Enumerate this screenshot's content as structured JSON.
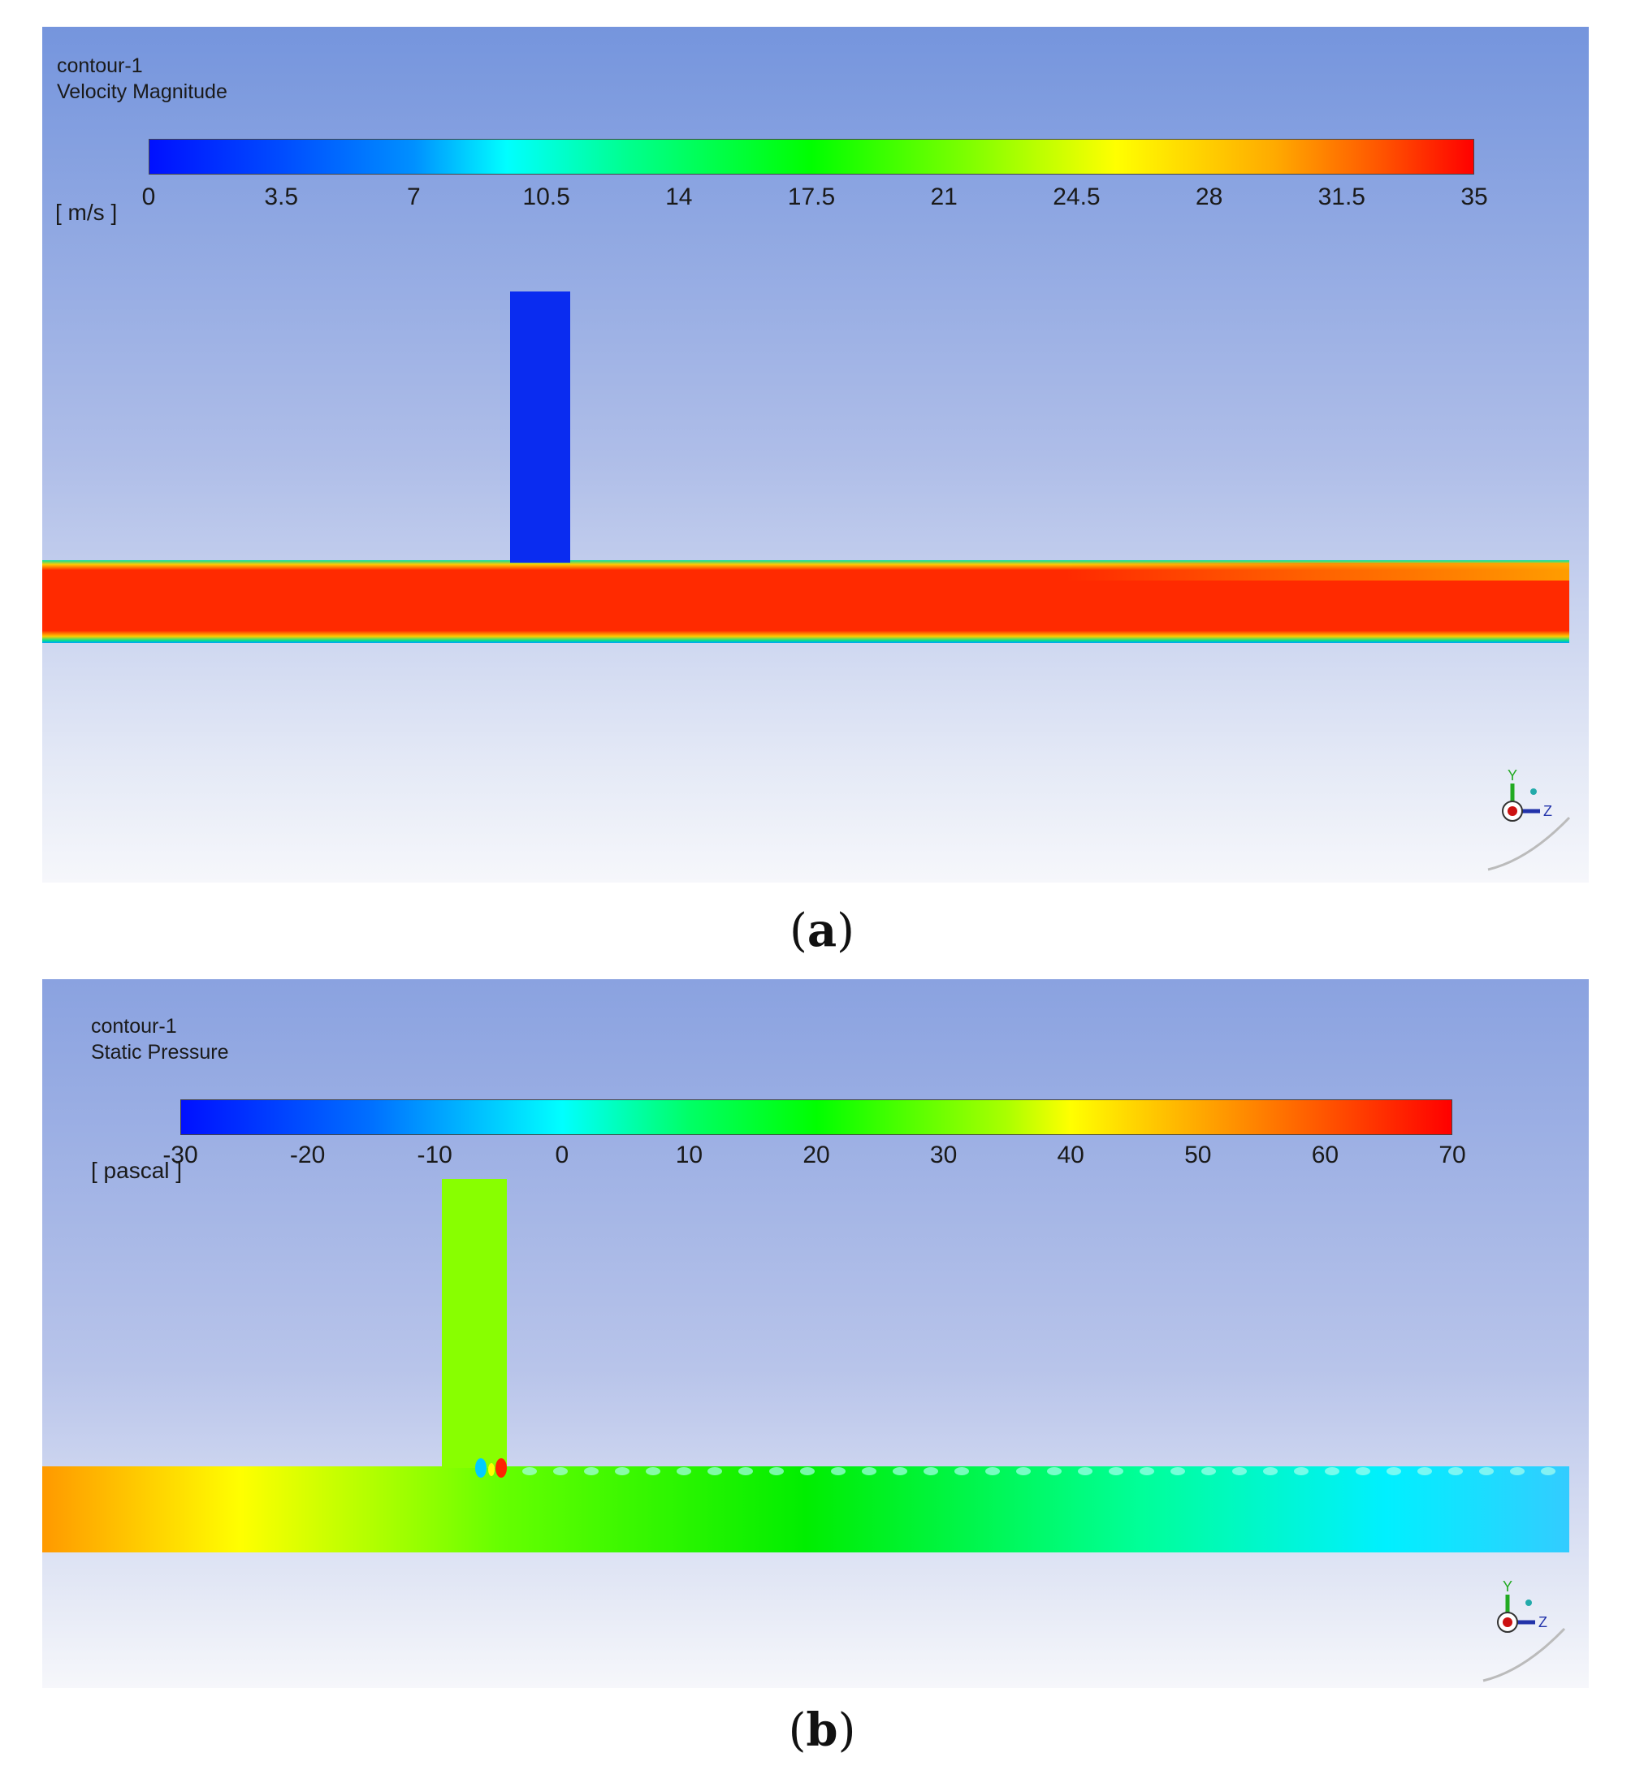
{
  "panels": [
    {
      "id": "a",
      "name": "contour-1",
      "quantity": "Velocity Magnitude",
      "unit": "[ m/s ]",
      "ticks": [
        "0",
        "3.5",
        "7",
        "10.5",
        "14",
        "17.5",
        "21",
        "24.5",
        "28",
        "31.5",
        "35"
      ],
      "caption_letter": "a"
    },
    {
      "id": "b",
      "name": "contour-1",
      "quantity": "Static Pressure",
      "unit": "[ pascal ]",
      "ticks": [
        "-30",
        "-20",
        "-10",
        "0",
        "10",
        "20",
        "30",
        "40",
        "50",
        "60",
        "70"
      ],
      "caption_letter": "b"
    }
  ],
  "colors": {
    "velocity_pipe": "#ff2a00",
    "velocity_branch": "#0a2cf0",
    "pressure_branch": "#88ff00"
  },
  "axis_triad": {
    "y_label": "Y",
    "z_label": "Z"
  }
}
